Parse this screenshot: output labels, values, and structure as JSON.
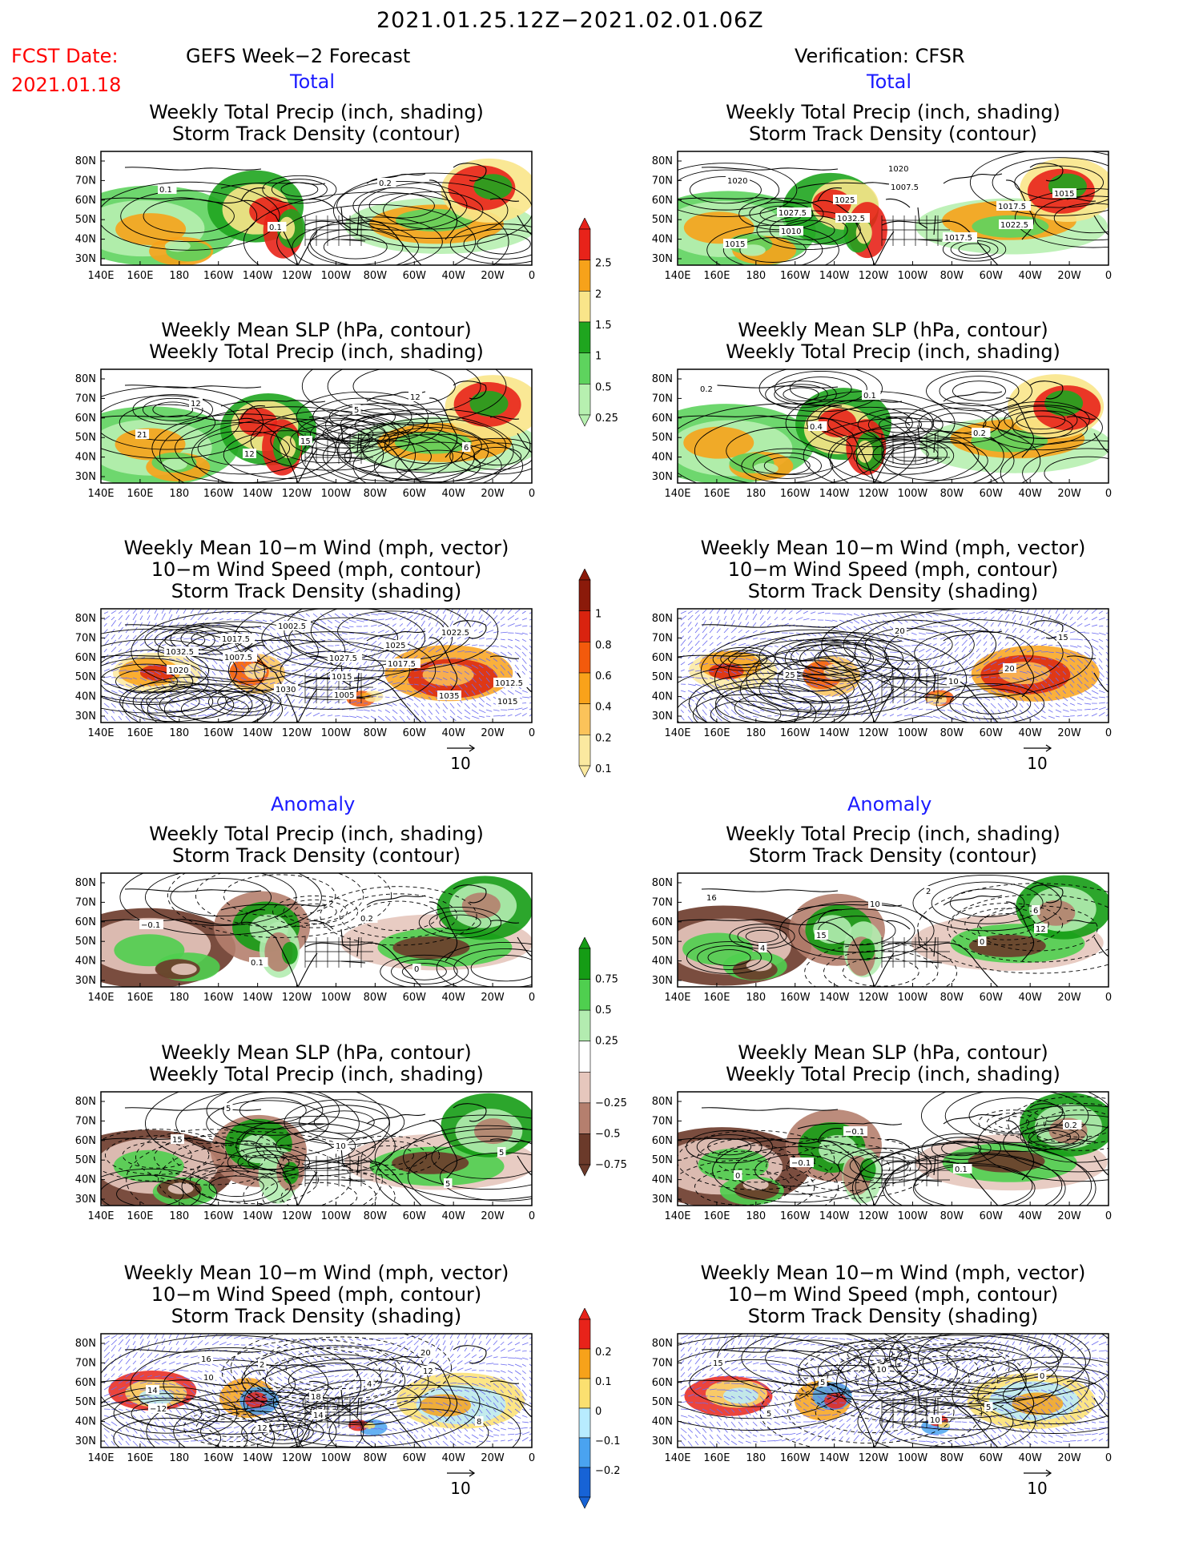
{
  "header": {
    "title": "2021.01.25.12Z−2021.02.01.06Z",
    "fcst_label": "FCST Date:",
    "fcst_date": "2021.01.18",
    "left_heading": "GEFS Week−2 Forecast",
    "right_heading": "Verification: CFSR",
    "total_label": "Total",
    "anomaly_label": "Anomaly"
  },
  "titles": {
    "precip_track": [
      "Weekly Total Precip (inch, shading)",
      "Storm Track Density (contour)"
    ],
    "slp_precip": [
      "Weekly Mean SLP (hPa, contour)",
      "Weekly Total Precip (inch, shading)"
    ],
    "wind": [
      "Weekly Mean 10−m Wind (mph, vector)",
      "10−m Wind Speed (mph, contour)",
      "Storm Track Density (shading)"
    ]
  },
  "axes": {
    "lat_labels": [
      "80N",
      "70N",
      "60N",
      "50N",
      "40N",
      "30N"
    ],
    "lon_labels": [
      "140E",
      "160E",
      "180",
      "160W",
      "140W",
      "120W",
      "100W",
      "80W",
      "60W",
      "40W",
      "20W",
      "0"
    ]
  },
  "vector_ref": "10",
  "colorbars": {
    "precip_total": {
      "labels": [
        "2.5",
        "2",
        "1.5",
        "1",
        "0.5",
        "0.25"
      ],
      "colors": [
        "#e8231a",
        "#f7a21a",
        "#f9e58a",
        "#1fa51f",
        "#5ed35e",
        "#b7f0b0"
      ]
    },
    "track_total": {
      "labels": [
        "1",
        "0.8",
        "0.6",
        "0.4",
        "0.2",
        "0.1"
      ],
      "colors": [
        "#8b1a0a",
        "#d9230f",
        "#f35a0c",
        "#f9a21a",
        "#fbc35a",
        "#fbe9a0"
      ]
    },
    "precip_anom": {
      "labels": [
        "0.75",
        "0.5",
        "0.25",
        "−0.25",
        "−0.5",
        "−0.75"
      ],
      "colors": [
        "#159c15",
        "#4fcf4f",
        "#b3ecb0",
        "#ffffff",
        "#e6c7bd",
        "#b57f6e",
        "#6b3a2a"
      ]
    },
    "track_anom": {
      "labels": [
        "0.2",
        "0.1",
        "0",
        "−0.1",
        "−0.2"
      ],
      "colors": [
        "#e8231a",
        "#f7a21a",
        "#fbe070",
        "#b8ecff",
        "#4aa3f0",
        "#1763d6"
      ]
    }
  },
  "map_labels": {
    "p1": [
      "0.1",
      "0.1",
      "0.2"
    ],
    "p2": [
      "1027.5",
      "1020",
      "1017.5",
      "1015",
      "1025",
      "1017.5",
      "1015",
      "1010",
      "1007.5",
      "1022.5",
      "1020",
      "1032.5"
    ],
    "p3": [
      "12",
      "5",
      "6",
      "12",
      "15",
      "12",
      "21"
    ],
    "p4": [
      "0.1",
      "0.2",
      "0.2",
      "0.4"
    ],
    "p5": [
      "1027.5",
      "1035",
      "1032.5",
      "1030",
      "1025",
      "1012.5",
      "1017.5",
      "1015",
      "1022.5",
      "1020",
      "1002.5",
      "1017.5",
      "1015",
      "1007.5",
      "1005"
    ],
    "p6": [
      "10",
      "15",
      "25",
      "20",
      "20"
    ],
    "p7": [
      "0",
      "−0.1",
      "0.1",
      "0.2"
    ],
    "p8": [
      "6",
      "4",
      "10",
      "0",
      "16",
      "15",
      "2",
      "12"
    ],
    "p9": [
      "5",
      "5",
      "10",
      "5",
      "15"
    ],
    "p10": [
      "0",
      "−0.1",
      "0.1",
      "0.2",
      "−0.1"
    ],
    "p11": [
      "16",
      "18",
      "20",
      "14",
      "12",
      "4",
      "8",
      "10",
      "14",
      "12",
      "−12",
      "2"
    ],
    "p12": [
      "5",
      "10",
      "0",
      "5",
      "10",
      "5",
      "15"
    ]
  }
}
